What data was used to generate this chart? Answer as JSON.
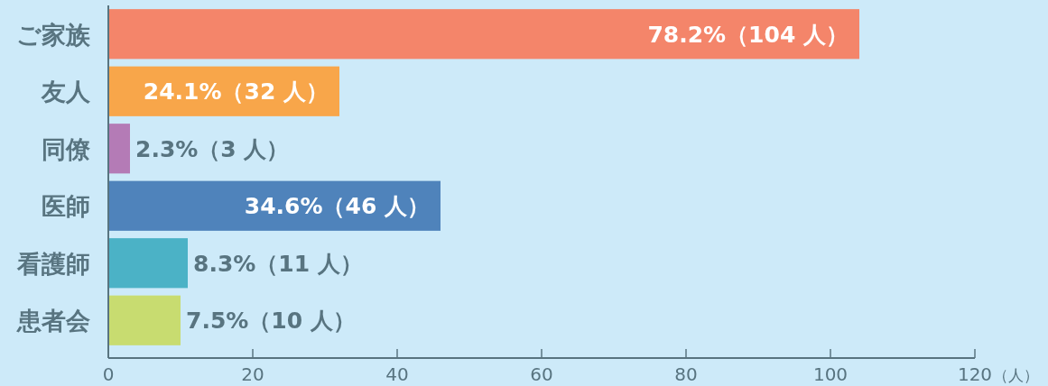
{
  "chart_data": {
    "type": "bar",
    "orientation": "horizontal",
    "xlabel": "（人）",
    "categories": [
      "ご家族",
      "友人",
      "同僚",
      "医師",
      "看護師",
      "患者会"
    ],
    "values": [
      104,
      32,
      3,
      46,
      11,
      10
    ],
    "colors": [
      "#f4856a",
      "#f8a64a",
      "#b47bb6",
      "#4f83bb",
      "#4bb2c6",
      "#c8dc70"
    ],
    "value_labels": [
      "78.2%（104 人）",
      "24.1%（32 人）",
      "2.3%（3 人）",
      "34.6%（46 人）",
      "8.3%（11 人）",
      "7.5%（10 人）"
    ],
    "xlim": [
      0,
      120
    ],
    "xticks": [
      0,
      20,
      40,
      60,
      80,
      100,
      120
    ]
  }
}
